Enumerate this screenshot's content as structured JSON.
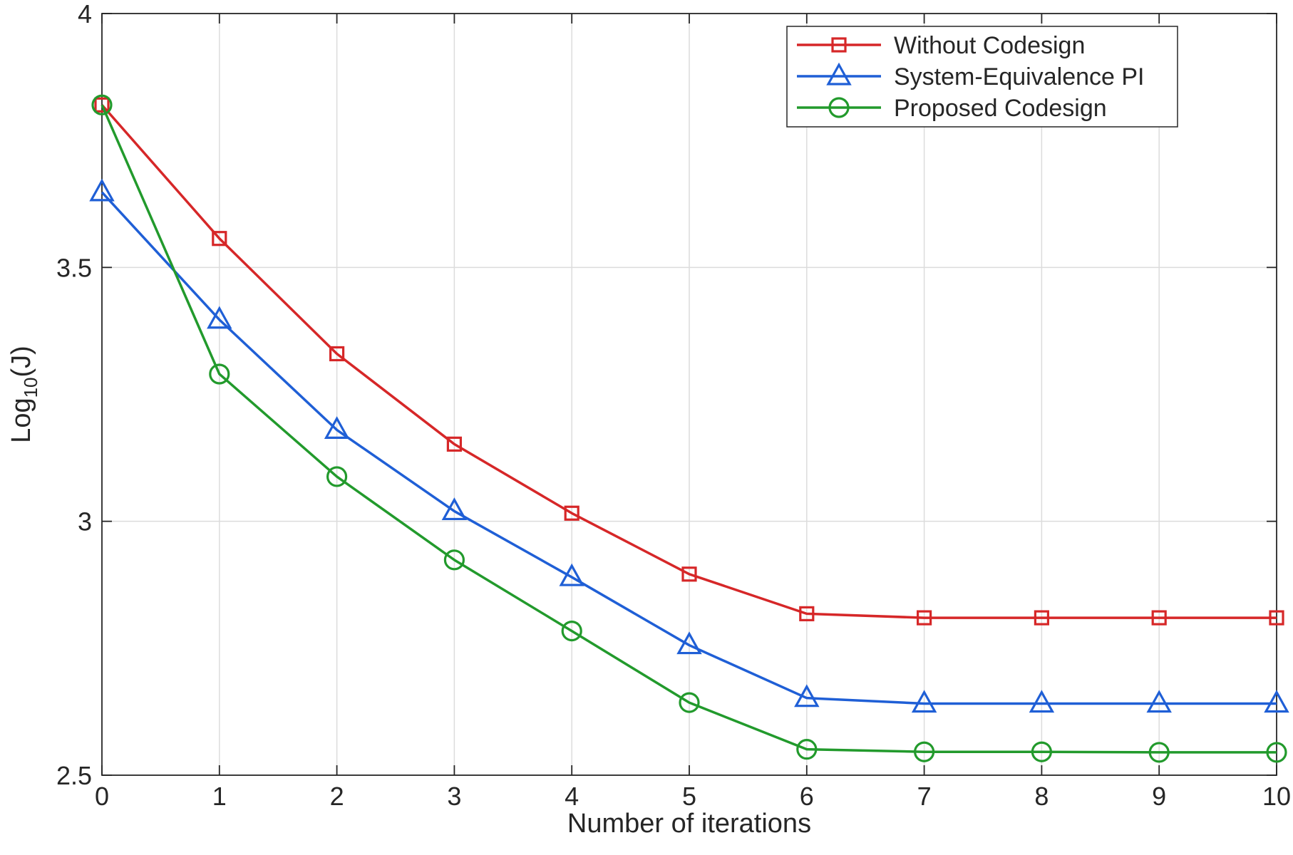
{
  "chart_data": {
    "type": "line",
    "xlabel": "Number of iterations",
    "ylabel_main": "Log",
    "ylabel_sub": "10",
    "ylabel_tail": "(J)",
    "x": [
      0,
      1,
      2,
      3,
      4,
      5,
      6,
      7,
      8,
      9,
      10
    ],
    "xlim": [
      0,
      10
    ],
    "ylim": [
      2.5,
      4
    ],
    "xticks": [
      "0",
      "1",
      "2",
      "3",
      "4",
      "5",
      "6",
      "7",
      "8",
      "9",
      "10"
    ],
    "yticks": [
      "2.5",
      "3",
      "3.5",
      "4"
    ],
    "ytick_values": [
      2.5,
      3,
      3.5,
      4
    ],
    "grid": true,
    "legend_position": "top-right",
    "series": [
      {
        "name": "Without Codesign",
        "color": "#d62728",
        "marker": "square",
        "values": [
          3.82,
          3.557,
          3.33,
          3.152,
          3.016,
          2.896,
          2.818,
          2.81,
          2.81,
          2.81,
          2.81
        ]
      },
      {
        "name": "System-Equivalence PI",
        "color": "#1f5fd6",
        "marker": "triangle",
        "values": [
          3.648,
          3.397,
          3.18,
          3.02,
          2.89,
          2.756,
          2.652,
          2.641,
          2.641,
          2.641,
          2.641
        ]
      },
      {
        "name": "Proposed Codesign",
        "color": "#229a2c",
        "marker": "circle",
        "values": [
          3.82,
          3.29,
          3.088,
          2.924,
          2.784,
          2.643,
          2.551,
          2.546,
          2.546,
          2.545,
          2.545
        ]
      }
    ]
  }
}
